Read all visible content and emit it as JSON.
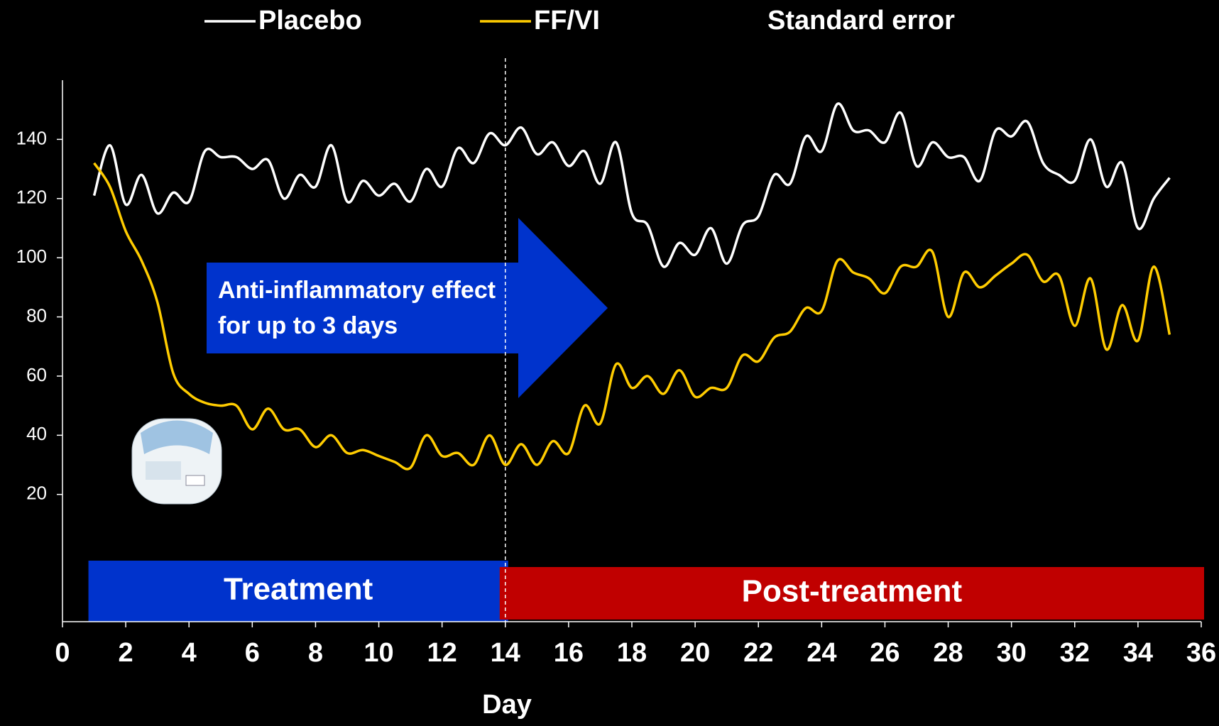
{
  "chart_data": {
    "type": "line",
    "xlabel": "Day",
    "x": [
      1,
      1.5,
      2,
      2.5,
      3,
      3.5,
      4,
      4.5,
      5,
      5.5,
      6,
      6.5,
      7,
      7.5,
      8,
      8.5,
      9,
      9.5,
      10,
      10.5,
      11,
      11.5,
      12,
      12.5,
      13,
      13.5,
      14,
      14.5,
      15,
      15.5,
      16,
      16.5,
      17,
      17.5,
      18,
      18.5,
      19,
      19.5,
      20,
      20.5,
      21,
      21.5,
      22,
      22.5,
      23,
      23.5,
      24,
      24.5,
      25,
      25.5,
      26,
      26.5,
      27,
      27.5,
      28,
      28.5,
      29,
      29.5,
      30,
      30.5,
      31,
      31.5,
      32,
      32.5,
      33,
      33.5,
      34,
      34.5,
      35
    ],
    "series": [
      {
        "name": "Placebo",
        "color": "#ffffff",
        "values": [
          121,
          138,
          118,
          128,
          115,
          122,
          119,
          136,
          134,
          134,
          130,
          133,
          120,
          128,
          124,
          138,
          119,
          126,
          121,
          125,
          119,
          130,
          124,
          137,
          132,
          142,
          138,
          144,
          135,
          139,
          131,
          136,
          125,
          139,
          115,
          111,
          97,
          105,
          101,
          110,
          98,
          111,
          114,
          128,
          125,
          141,
          136,
          152,
          143,
          143,
          139,
          149,
          131,
          139,
          134,
          134,
          126,
          143,
          141,
          146,
          132,
          128,
          126,
          140,
          124,
          132,
          110,
          120,
          127
        ]
      },
      {
        "name": "FF/VI",
        "color": "#ffcc00",
        "values": [
          132,
          124,
          109,
          99,
          85,
          61,
          54,
          51,
          50,
          50,
          42,
          49,
          42,
          42,
          36,
          40,
          34,
          35,
          33,
          31,
          29,
          40,
          33,
          34,
          30,
          40,
          30,
          37,
          30,
          38,
          34,
          50,
          44,
          64,
          56,
          60,
          54,
          62,
          53,
          56,
          56,
          67,
          65,
          73,
          75,
          83,
          82,
          99,
          95,
          93,
          88,
          97,
          97,
          102,
          80,
          95,
          90,
          94,
          98,
          101,
          92,
          94,
          77,
          93,
          69,
          84,
          72,
          97,
          74
        ]
      }
    ],
    "se_legend": "Standard error",
    "xlim": [
      0,
      36
    ],
    "xticks": [
      0,
      2,
      4,
      6,
      8,
      10,
      12,
      14,
      16,
      18,
      20,
      22,
      24,
      26,
      28,
      30,
      32,
      34,
      36
    ],
    "ylim": [
      -23,
      160
    ],
    "yticks": [
      20,
      40,
      60,
      80,
      100,
      120,
      140
    ],
    "treatment_end": 14,
    "annotation": [
      "Anti-inflammatory effect",
      "for up to 3 days"
    ],
    "phases": [
      {
        "label": "Treatment",
        "start": 1,
        "end": 14,
        "color": "#0033cc"
      },
      {
        "label": "Post-treatment",
        "start": 14,
        "end": 36,
        "color": "#c00000"
      }
    ]
  }
}
